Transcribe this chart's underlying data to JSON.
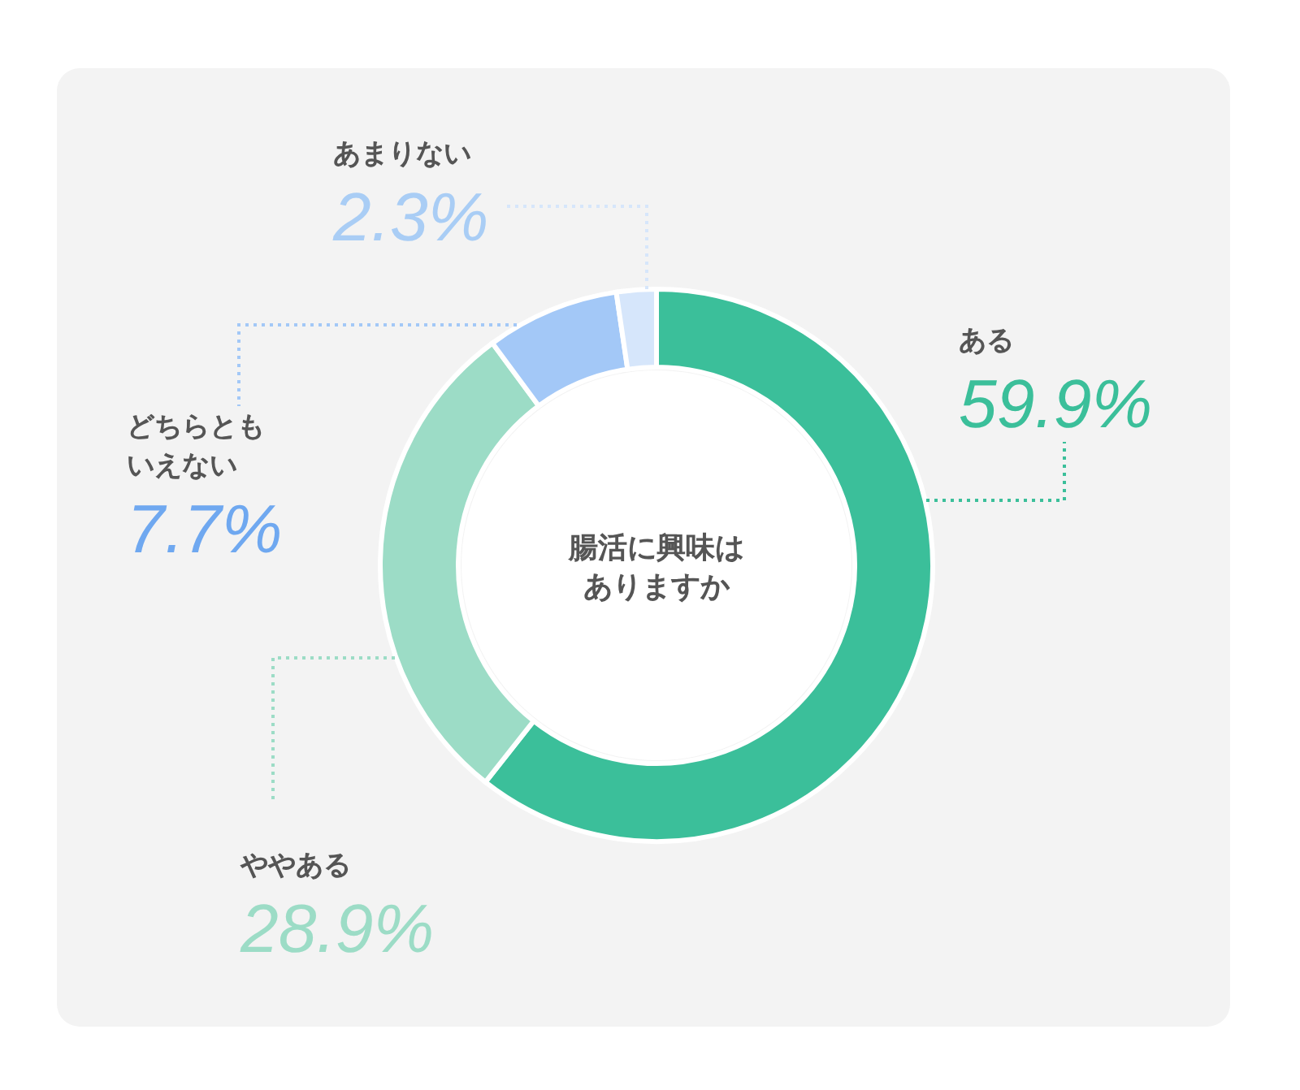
{
  "chart_data": {
    "type": "donut",
    "title": "腸活に興味はありますか",
    "categories": [
      "ある",
      "ややある",
      "どちらともいえない",
      "あまりない"
    ],
    "values": [
      59.9,
      28.9,
      7.7,
      2.3
    ],
    "value_labels": [
      "59.9%",
      "28.9%",
      "7.7%",
      "2.3%"
    ],
    "colors": [
      "#3bbf9a",
      "#9cdcc6",
      "#a3c8f7",
      "#d6e6fb"
    ]
  }
}
